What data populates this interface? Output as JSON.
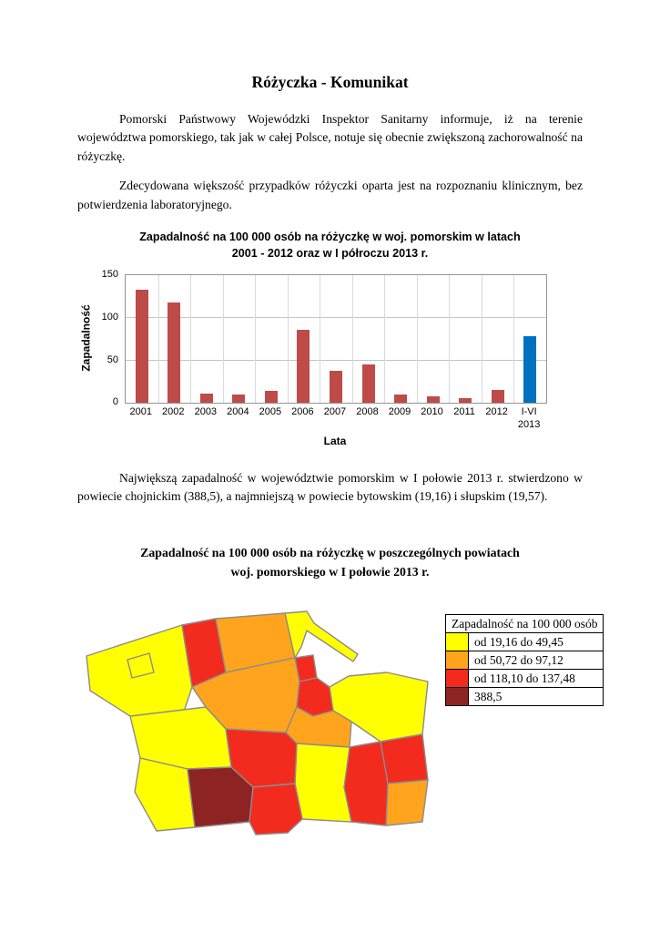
{
  "doc": {
    "title": "Różyczka - Komunikat",
    "paragraphs": [
      "Pomorski Państwowy Wojewódzki Inspektor Sanitarny informuje, iż na terenie województwa pomorskiego, tak jak w całej Polsce, notuje się obecnie zwiększoną zachorowalność na różyczkę.",
      "Zdecydowana większość przypadków różyczki oparta jest na rozpoznaniu klinicznym, bez potwierdzenia laboratoryjnego.",
      "Największą zapadalność w województwie pomorskim w I połowie 2013 r. stwierdzono w powiecie chojnickim (388,5), a najmniejszą w powiecie bytowskim (19,16) i słupskim (19,57)."
    ]
  },
  "chart_data": {
    "type": "bar",
    "title": "Zapadalność na 100 000 osób na różyczkę w woj. pomorskim w latach 2001 - 2012 oraz w I półroczu 2013 r.",
    "title_line1": "Zapadalność na 100 000 osób na różyczkę w woj. pomorskim w latach",
    "title_line2": "2001 - 2012 oraz w I półroczu 2013 r.",
    "categories": [
      "2001",
      "2002",
      "2003",
      "2004",
      "2005",
      "2006",
      "2007",
      "2008",
      "2009",
      "2010",
      "2011",
      "2012",
      "I-VI\n2013"
    ],
    "values": [
      133,
      118,
      11,
      10,
      14,
      86,
      38,
      46,
      10,
      8,
      6,
      15,
      79
    ],
    "xlabel": "Lata",
    "ylabel": "Zapadalność",
    "ylim": [
      0,
      150
    ],
    "yticks": [
      0,
      50,
      100,
      150
    ],
    "grid": true,
    "legend_position": "none",
    "bar_color": "#BE4B48",
    "highlight_index": 12,
    "highlight_color": "#0070C0"
  },
  "map_section": {
    "title_line1": "Zapadalność na 100 000 osób na różyczkę w poszczególnych powiatach",
    "title_line2": "woj. pomorskiego w I połowie 2013 r.",
    "legend_title": "Zapadalność na 100 000 osób",
    "legend_items": [
      {
        "label": "od 19,16 do 49,45",
        "color": "#FFFF00"
      },
      {
        "label": "od 50,72 do 97,12",
        "color": "#FFA41C"
      },
      {
        "label": "od 118,10 do 137,48",
        "color": "#F22B1E"
      },
      {
        "label": "388,5",
        "color": "#8E2323"
      }
    ],
    "region_categories": [
      0,
      0,
      2,
      1,
      0,
      2,
      1,
      2,
      0,
      1,
      2,
      1,
      2,
      0,
      2,
      0,
      0,
      3,
      2
    ],
    "border_color": "#8C8C8C"
  }
}
